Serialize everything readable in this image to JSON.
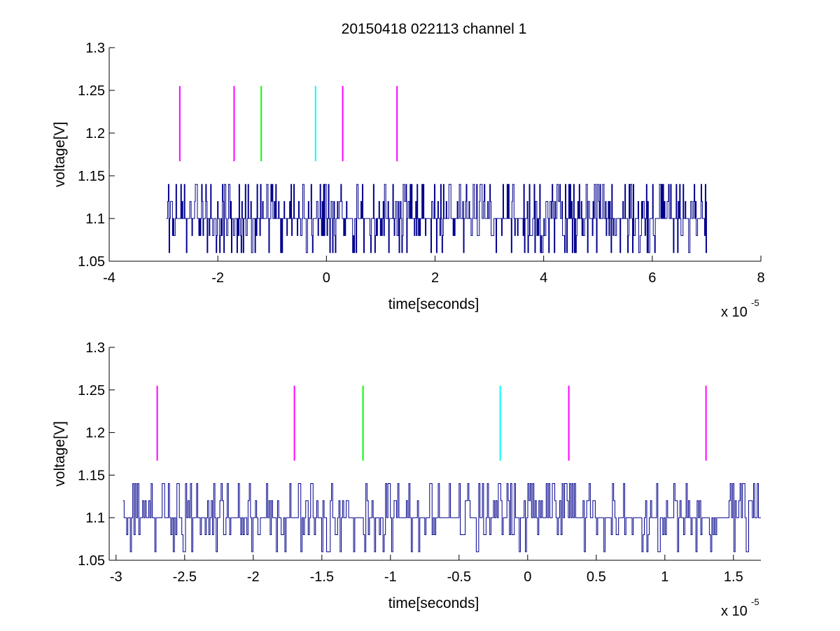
{
  "figure": {
    "title": "20150418 022113 channel 1"
  },
  "chart_data": [
    {
      "type": "line",
      "xlabel": "time[seconds]",
      "ylabel": "voltage[V]",
      "xlim": [
        -4,
        8
      ],
      "ylim": [
        1.05,
        1.3
      ],
      "x_scale_label": {
        "base": "x 10",
        "exponent": "-5"
      },
      "x_ticks": [
        "-4",
        "-2",
        "0",
        "2",
        "4",
        "6",
        "8"
      ],
      "y_ticks": [
        "1.05",
        "1.1",
        "1.15",
        "1.2",
        "1.25",
        "1.3"
      ],
      "grid": false,
      "trace": {
        "color": "#00008b",
        "x_range": [
          -2.95,
          7.0
        ],
        "levels": [
          1.06,
          1.08,
          1.1,
          1.12,
          1.14
        ],
        "baseline": 1.1,
        "note_values": "dense digitized noise between 1.06 and 1.14 V"
      },
      "markers": [
        {
          "x": -2.7,
          "color": "#ff00ff"
        },
        {
          "x": -1.7,
          "color": "#ff00ff"
        },
        {
          "x": -1.2,
          "color": "#00ff00"
        },
        {
          "x": -0.2,
          "color": "#00ffff"
        },
        {
          "x": 0.3,
          "color": "#ff00ff"
        },
        {
          "x": 1.3,
          "color": "#ff00ff"
        }
      ],
      "marker_y_range": [
        1.167,
        1.255
      ]
    },
    {
      "type": "line",
      "xlabel": "time[seconds]",
      "ylabel": "voltage[V]",
      "xlim": [
        -3.05,
        1.7
      ],
      "ylim": [
        1.05,
        1.3
      ],
      "x_scale_label": {
        "base": "x 10",
        "exponent": "-5"
      },
      "x_ticks": [
        "-3",
        "-2.5",
        "-2",
        "-1.5",
        "-1",
        "-0.5",
        "0",
        "0.5",
        "1",
        "1.5"
      ],
      "y_ticks": [
        "1.05",
        "1.1",
        "1.15",
        "1.2",
        "1.25",
        "1.3"
      ],
      "grid": false,
      "trace": {
        "color": "#00008b",
        "x_range": [
          -2.95,
          1.7
        ],
        "levels": [
          1.06,
          1.08,
          1.1,
          1.12,
          1.14
        ],
        "baseline": 1.1,
        "note_values": "digitized noise between 1.06 and 1.14 V"
      },
      "markers": [
        {
          "x": -2.7,
          "color": "#ff00ff"
        },
        {
          "x": -1.7,
          "color": "#ff00ff"
        },
        {
          "x": -1.2,
          "color": "#00ff00"
        },
        {
          "x": -0.2,
          "color": "#00ffff"
        },
        {
          "x": 0.3,
          "color": "#ff00ff"
        },
        {
          "x": 1.3,
          "color": "#ff00ff"
        }
      ],
      "marker_y_range": [
        1.167,
        1.255
      ]
    }
  ]
}
